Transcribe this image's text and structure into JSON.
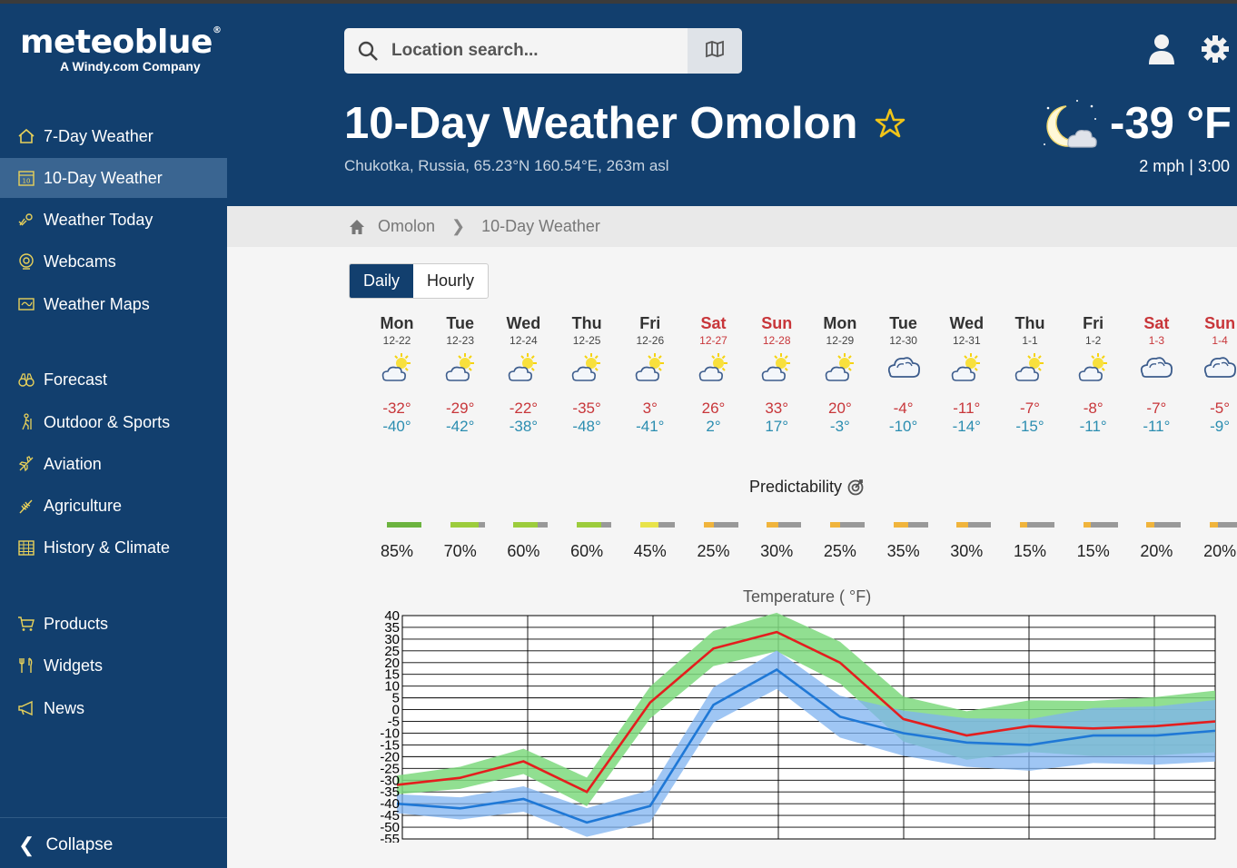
{
  "sidebar": {
    "logo": "meteoblue",
    "logo_reg": "®",
    "logo_sub": "A Windy.com Company",
    "items": [
      {
        "label": "7-Day Weather",
        "icon": "home-icon"
      },
      {
        "label": "10-Day Weather",
        "icon": "calendar-icon",
        "active": true
      },
      {
        "label": "Weather Today",
        "icon": "weather-today-icon"
      },
      {
        "label": "Webcams",
        "icon": "webcam-icon"
      },
      {
        "label": "Weather Maps",
        "icon": "map-icon"
      },
      {
        "label": "Forecast",
        "icon": "binoculars-icon"
      },
      {
        "label": "Outdoor & Sports",
        "icon": "hiker-icon"
      },
      {
        "label": "Aviation",
        "icon": "plane-icon"
      },
      {
        "label": "Agriculture",
        "icon": "wheat-icon"
      },
      {
        "label": "History & Climate",
        "icon": "table-icon"
      },
      {
        "label": "Products",
        "icon": "cart-icon"
      },
      {
        "label": "Widgets",
        "icon": "widgets-icon"
      },
      {
        "label": "News",
        "icon": "megaphone-icon"
      }
    ],
    "collapse_label": "Collapse"
  },
  "header": {
    "search_placeholder": "Location search...",
    "title": "10-Day Weather Omolon",
    "location": "Chukotka, Russia, 65.23°N 160.54°E, 263m asl",
    "current_temp": "-39 °F",
    "wind_time": "2 mph  | 3:00"
  },
  "breadcrumb": {
    "home": "Omolon",
    "current": "10-Day Weather"
  },
  "tabs": [
    {
      "label": "Daily",
      "active": true
    },
    {
      "label": "Hourly",
      "active": false
    }
  ],
  "days": [
    {
      "name": "Mon",
      "date": "12-22",
      "max": "-32°",
      "min": "-40°",
      "icon": "sun-cloud",
      "weekend": false
    },
    {
      "name": "Tue",
      "date": "12-23",
      "max": "-29°",
      "min": "-42°",
      "icon": "sun-cloud",
      "weekend": false
    },
    {
      "name": "Wed",
      "date": "12-24",
      "max": "-22°",
      "min": "-38°",
      "icon": "sun-cloud",
      "weekend": false
    },
    {
      "name": "Thu",
      "date": "12-25",
      "max": "-35°",
      "min": "-48°",
      "icon": "sun-cloud",
      "weekend": false
    },
    {
      "name": "Fri",
      "date": "12-26",
      "max": "3°",
      "min": "-41°",
      "icon": "sun-cloud",
      "weekend": false
    },
    {
      "name": "Sat",
      "date": "12-27",
      "max": "26°",
      "min": "2°",
      "icon": "sun-cloud",
      "weekend": true
    },
    {
      "name": "Sun",
      "date": "12-28",
      "max": "33°",
      "min": "17°",
      "icon": "sun-cloud",
      "weekend": true
    },
    {
      "name": "Mon",
      "date": "12-29",
      "max": "20°",
      "min": "-3°",
      "icon": "sun-cloud",
      "weekend": false
    },
    {
      "name": "Tue",
      "date": "12-30",
      "max": "-4°",
      "min": "-10°",
      "icon": "cloud",
      "weekend": false
    },
    {
      "name": "Wed",
      "date": "12-31",
      "max": "-11°",
      "min": "-14°",
      "icon": "sun-cloud",
      "weekend": false
    },
    {
      "name": "Thu",
      "date": "1-1",
      "max": "-7°",
      "min": "-15°",
      "icon": "sun-cloud",
      "weekend": false
    },
    {
      "name": "Fri",
      "date": "1-2",
      "max": "-8°",
      "min": "-11°",
      "icon": "sun-cloud",
      "weekend": false
    },
    {
      "name": "Sat",
      "date": "1-3",
      "max": "-7°",
      "min": "-11°",
      "icon": "cloud",
      "weekend": true
    },
    {
      "name": "Sun",
      "date": "1-4",
      "max": "-5°",
      "min": "-9°",
      "icon": "cloud",
      "weekend": true
    }
  ],
  "predictability": {
    "title": "Predictability",
    "values": [
      85,
      70,
      60,
      60,
      45,
      25,
      30,
      25,
      35,
      30,
      15,
      15,
      20,
      20
    ],
    "labels": [
      "85%",
      "70%",
      "60%",
      "60%",
      "45%",
      "25%",
      "30%",
      "25%",
      "35%",
      "30%",
      "15%",
      "15%",
      "20%",
      "20%"
    ],
    "colors": [
      "#6cb33f",
      "#9ccc3c",
      "#9ccc3c",
      "#9ccc3c",
      "#e8e34a",
      "#f0b43c",
      "#f0b43c",
      "#f0b43c",
      "#f0b43c",
      "#f0b43c",
      "#f0b43c",
      "#f0b43c",
      "#f0b43c",
      "#f0b43c"
    ]
  },
  "chart_data": {
    "type": "line",
    "title": "Temperature ( °F)",
    "x": [
      "12-22",
      "12-23",
      "12-24",
      "12-25",
      "12-26",
      "12-27",
      "12-28",
      "12-29",
      "12-30",
      "12-31",
      "1-1",
      "1-2",
      "1-3",
      "1-4"
    ],
    "ylim": [
      -55,
      40
    ],
    "yticks": [
      40,
      35,
      30,
      25,
      20,
      15,
      10,
      5,
      0,
      -5,
      -10,
      -15,
      -20,
      -25,
      -30,
      -35,
      -40,
      -45,
      -50,
      -55
    ],
    "series": [
      {
        "role": "max",
        "values": [
          -32,
          -29,
          -22,
          -35,
          3,
          26,
          33,
          20,
          -4,
          -11,
          -7,
          -8,
          -7,
          -5
        ]
      },
      {
        "role": "min",
        "values": [
          -40,
          -42,
          -38,
          -48,
          -41,
          2,
          17,
          -3,
          -10,
          -14,
          -15,
          -11,
          -11,
          -9
        ]
      }
    ],
    "colors": {
      "max": "#e41e1e",
      "min": "#1f78d6",
      "max_band": "#7ed97e",
      "min_band": "#7fb3f0"
    },
    "grid": true
  },
  "colors": {
    "brand": "#123f6e",
    "active": "#3a6591",
    "weekend": "#c8363a",
    "min_temp": "#2b8db0"
  }
}
